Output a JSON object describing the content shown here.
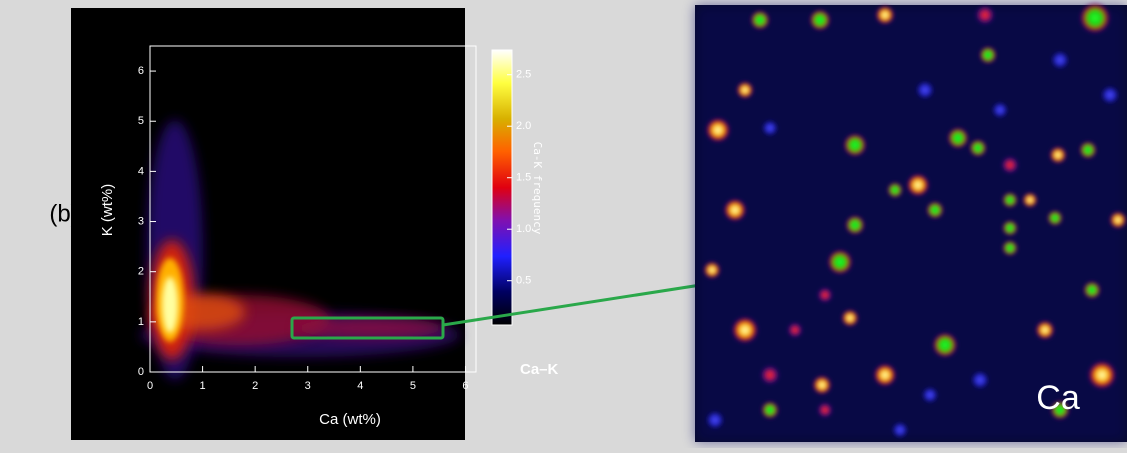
{
  "cut_text": "w",
  "panel_label": "(b)",
  "plot": {
    "x_label": "Ca (wt%)",
    "y_label": "K (wt%)",
    "xlim": [
      0,
      6.2
    ],
    "xticks": [
      0,
      1,
      2,
      3,
      4,
      5,
      6
    ],
    "ylim": [
      0,
      6.5
    ],
    "yticks": [
      0,
      1,
      2,
      3,
      4,
      5,
      6
    ],
    "pair_label": "Ca–K",
    "colorbar": {
      "label": "Ca-K frequency",
      "lim": [
        0.07,
        2.74
      ],
      "ticks": [
        {
          "value": 0.5,
          "label": "0.5"
        },
        {
          "value": 1,
          "label": "1.0"
        },
        1.5,
        {
          "value": 2,
          "label": "2.0"
        },
        2.5
      ]
    }
  },
  "image": {
    "label": "Ca"
  }
}
